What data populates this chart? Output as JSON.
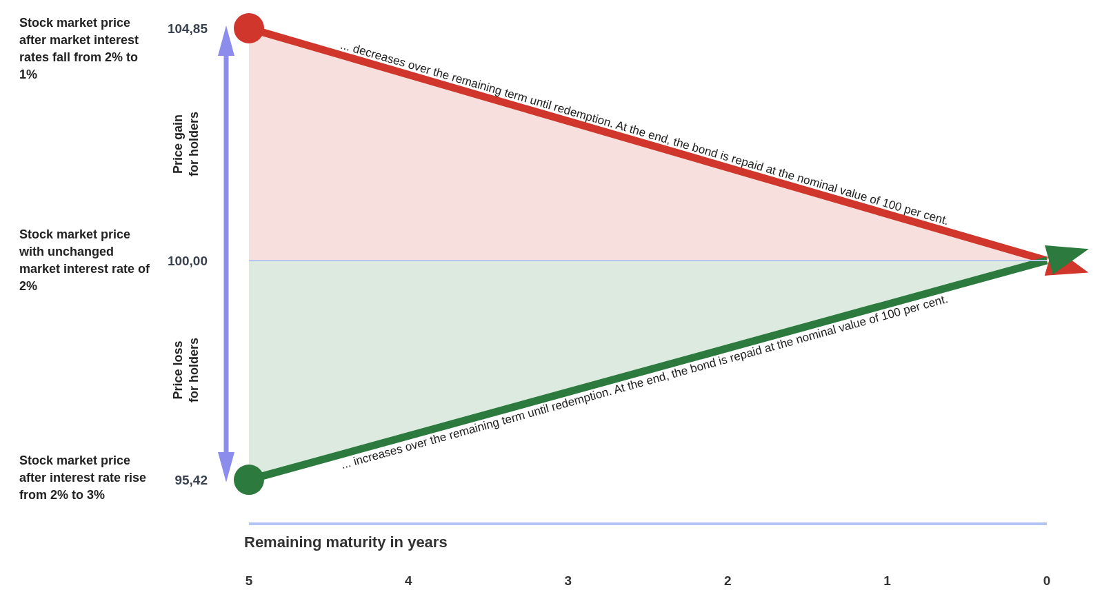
{
  "chart_data": {
    "type": "area",
    "xlabel": "Remaining maturity in years",
    "x": [
      5,
      0
    ],
    "series": [
      {
        "color": "#d0362b",
        "values": [
          104.85,
          100
        ]
      },
      {
        "color": "#2c7a3e",
        "values": [
          95.42,
          100
        ]
      }
    ],
    "xlim": [
      5,
      0
    ],
    "xticks": [
      5,
      4,
      3,
      2,
      1,
      0
    ],
    "ylim": [
      94.5,
      104.85
    ],
    "yticks": [
      {
        "value": 104.85,
        "label": "104,85"
      },
      {
        "value": 100,
        "label": "100,00"
      },
      {
        "value": 95.42,
        "label": "95,42"
      }
    ],
    "marker": "circle",
    "ref_lines": [
      {
        "axis": "y",
        "value": 100,
        "color": "#b7c5f0"
      }
    ],
    "annotations": [
      "Stock market price after market interest rates fall from 2% to 1%",
      "Stock market price with unchanged market interest rate of 2%",
      "Stock market price after interest rate rise from 2% to 3%",
      "Price gain for holders",
      "Price loss for holders",
      {
        "text": "... decreases over the remaining term until redemption. At the end, the bond is repaid at the nominal value of 100 per cent.",
        "x": 2.5,
        "y": 102.4
      },
      {
        "text": "... increases over the remaining term until redemption. At the end, the bond is repaid at the nominal value of 100 per cent.",
        "x": 2.5,
        "y": 97.7
      }
    ]
  }
}
